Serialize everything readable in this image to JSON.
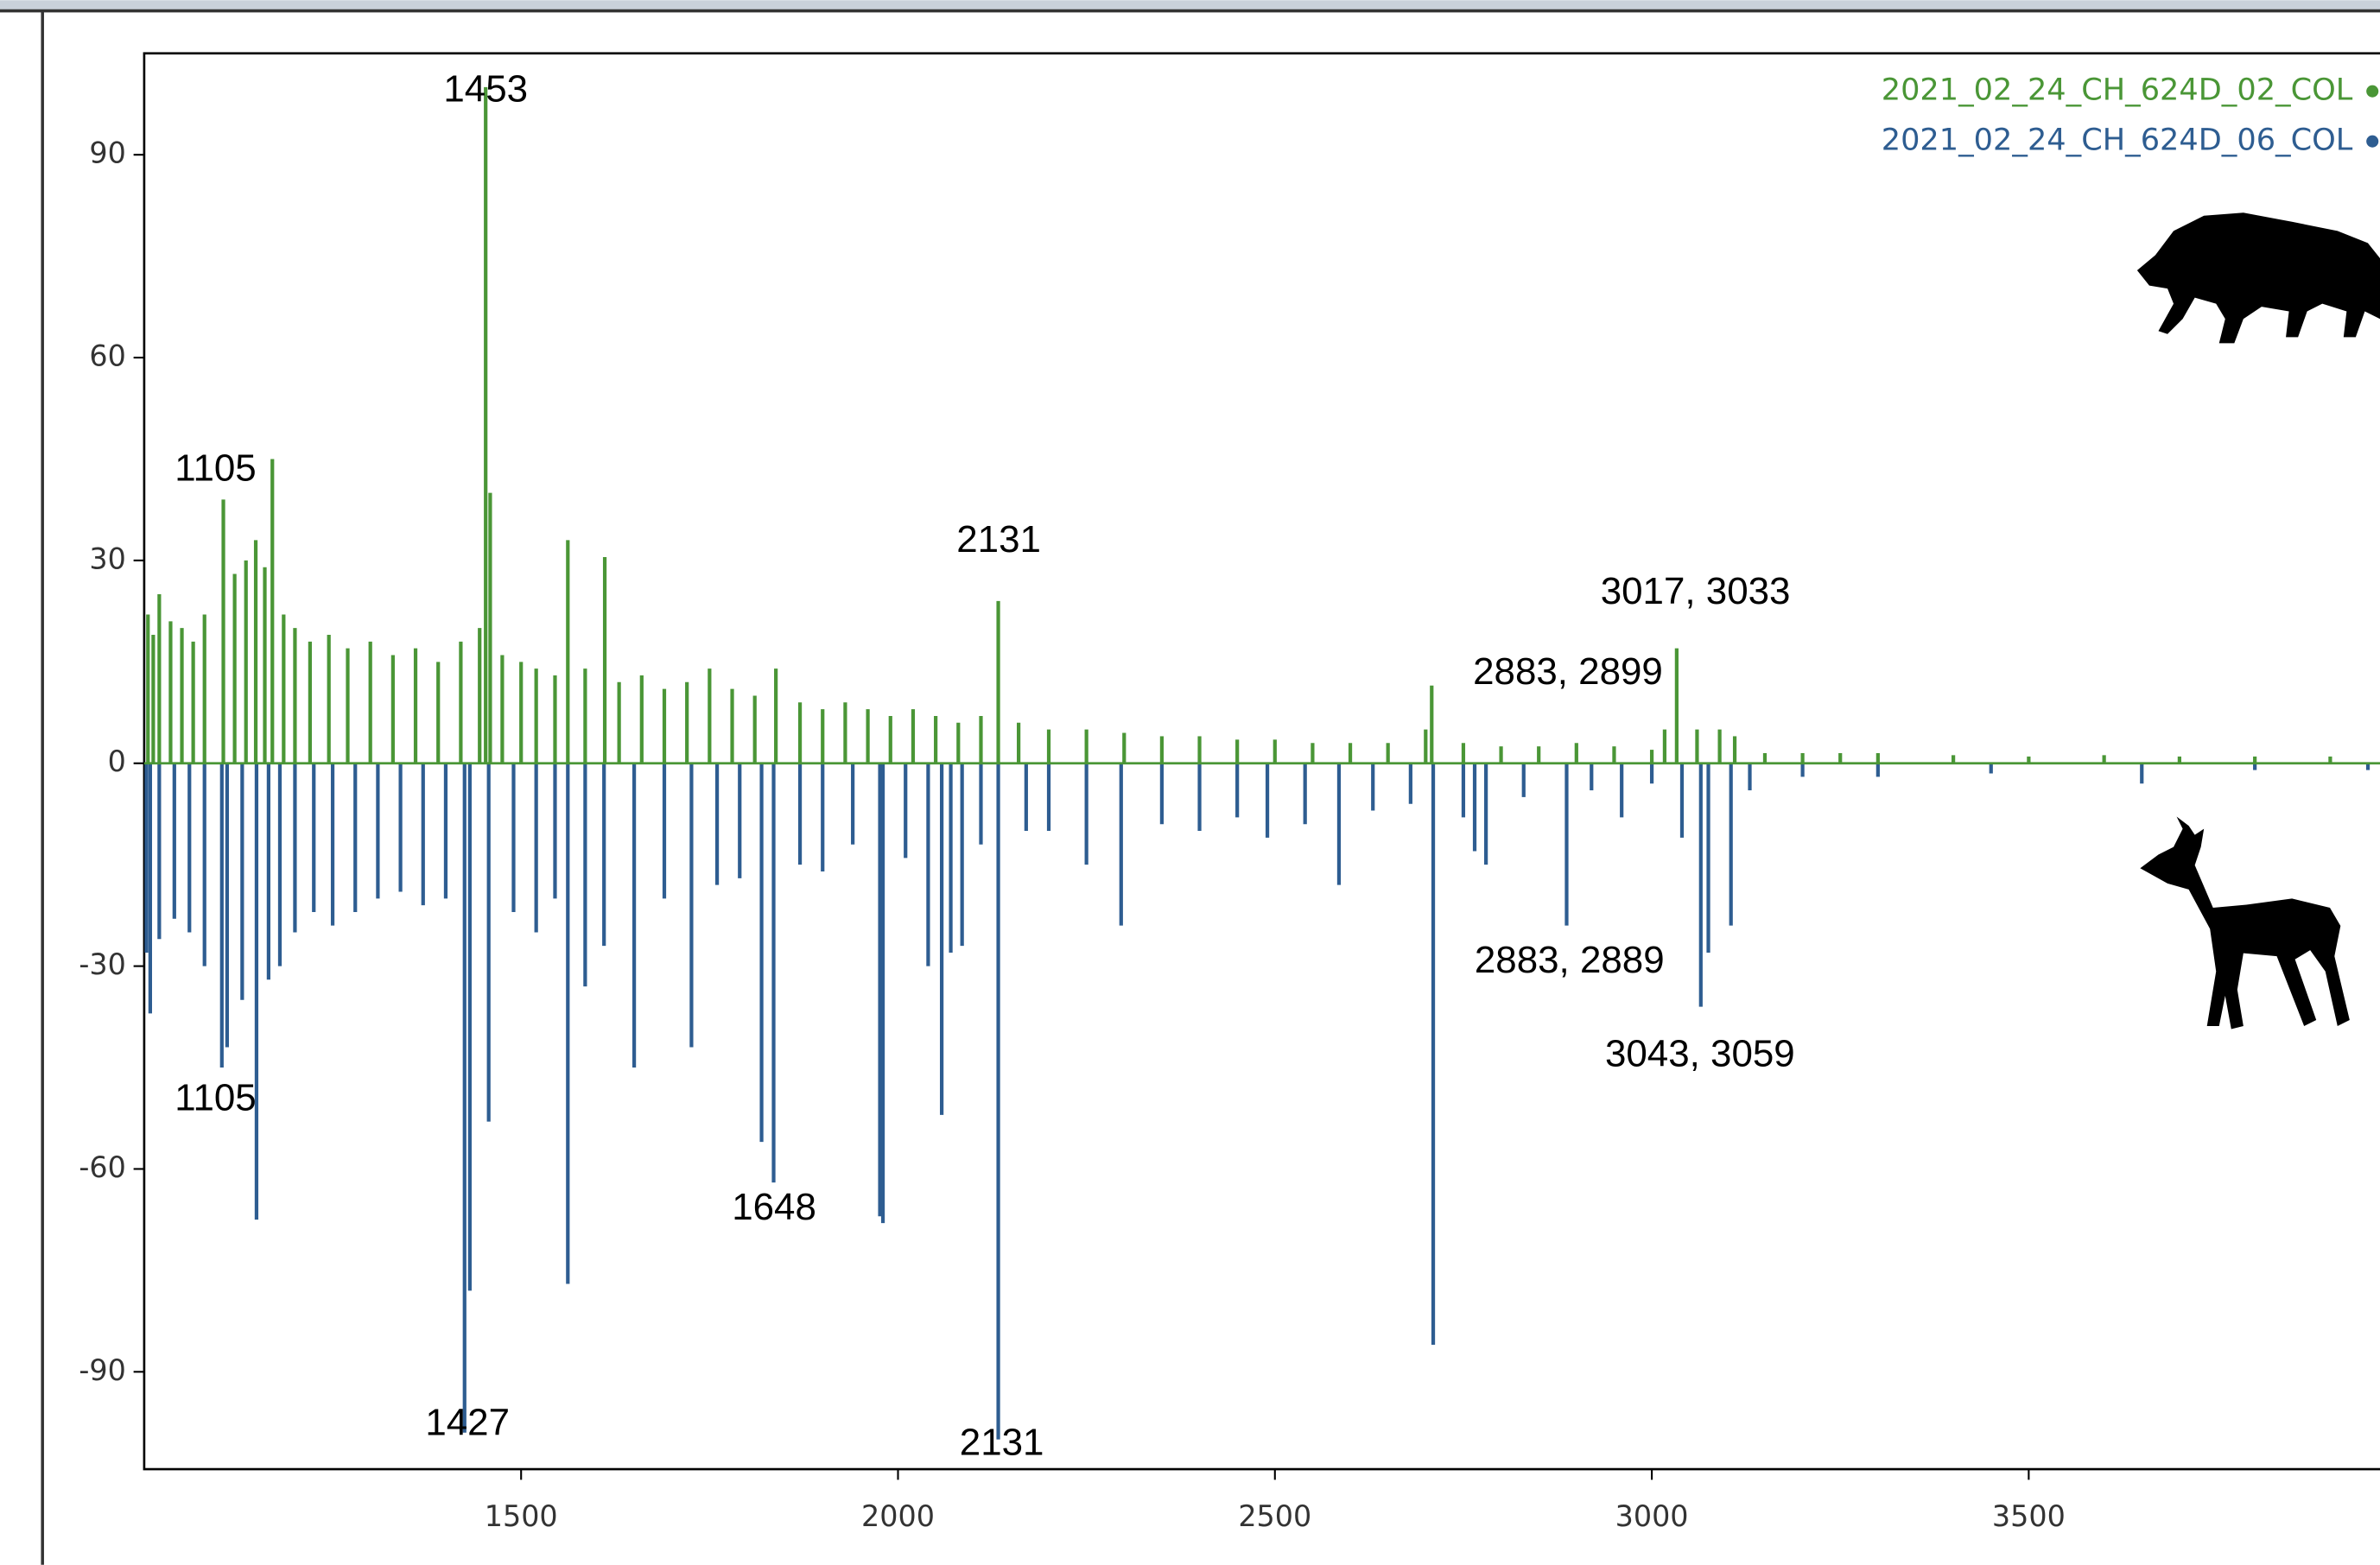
{
  "chart_data": {
    "type": "mirror-spectrum",
    "xlim": [
      1000,
      3966
    ],
    "ylim": [
      -104.4,
      105
    ],
    "xticks": [
      1500,
      2000,
      2500,
      3000,
      3500
    ],
    "yticks": [
      -90,
      -60,
      -30,
      0,
      30,
      60,
      90
    ],
    "series": [
      {
        "name": "2021_02_24_CH_624D_02_COL",
        "color": "#4a9636",
        "x": [
          1005,
          1012,
          1020,
          1035,
          1050,
          1065,
          1080,
          1105,
          1120,
          1135,
          1148,
          1160,
          1170,
          1185,
          1200,
          1220,
          1245,
          1270,
          1300,
          1330,
          1360,
          1390,
          1420,
          1445,
          1453,
          1459,
          1475,
          1500,
          1520,
          1545,
          1562,
          1585,
          1611,
          1630,
          1660,
          1690,
          1720,
          1750,
          1780,
          1810,
          1838,
          1870,
          1900,
          1930,
          1960,
          1990,
          2020,
          2050,
          2080,
          2110,
          2133,
          2160,
          2200,
          2250,
          2300,
          2350,
          2400,
          2450,
          2500,
          2550,
          2600,
          2650,
          2700,
          2708,
          2750,
          2800,
          2850,
          2900,
          2950,
          3000,
          3017,
          3033,
          3060,
          3090,
          3110,
          3150,
          3200,
          3250,
          3300,
          3400,
          3500,
          3600,
          3700,
          3800,
          3900
        ],
        "values": [
          22,
          19,
          25,
          21,
          20,
          18,
          22,
          39,
          28,
          30,
          33,
          29,
          45,
          22,
          20,
          18,
          19,
          17,
          18,
          16,
          17,
          15,
          18,
          20,
          100,
          40,
          16,
          15,
          14,
          13,
          33,
          14,
          30.5,
          12,
          13,
          11,
          12,
          14,
          11,
          10,
          14,
          9,
          8,
          9,
          8,
          7,
          8,
          7,
          6,
          7,
          24,
          6,
          5,
          5,
          4.5,
          4,
          4,
          3.5,
          3.5,
          3,
          3,
          3,
          5,
          11.5,
          3,
          2.5,
          2.5,
          3,
          2.5,
          2,
          5,
          17,
          5,
          5,
          4,
          1.5,
          1.5,
          1.5,
          1.5,
          1.2,
          1,
          1.2,
          1,
          1,
          1
        ]
      },
      {
        "name": "2021_02_24_CH_624D_06_COL",
        "color": "#2e5d91",
        "x": [
          1003,
          1008,
          1020,
          1040,
          1060,
          1080,
          1103,
          1110,
          1130,
          1149,
          1165,
          1180,
          1200,
          1225,
          1250,
          1280,
          1310,
          1340,
          1370,
          1400,
          1425,
          1432,
          1457,
          1490,
          1520,
          1545,
          1562,
          1585,
          1610,
          1650,
          1690,
          1726,
          1760,
          1790,
          1819,
          1835,
          1870,
          1900,
          1940,
          1976,
          1980,
          2010,
          2040,
          2058,
          2070,
          2085,
          2110,
          2133,
          2170,
          2200,
          2250,
          2296,
          2350,
          2400,
          2450,
          2490,
          2540,
          2585,
          2630,
          2680,
          2710,
          2750,
          2765,
          2780,
          2830,
          2887,
          2920,
          2960,
          3000,
          3040,
          3065,
          3075,
          3105,
          3130,
          3200,
          3300,
          3450,
          3650,
          3800,
          3950
        ],
        "values": [
          -28,
          -37,
          -26,
          -23,
          -25,
          -30,
          -45,
          -42,
          -35,
          -67.5,
          -32,
          -30,
          -25,
          -22,
          -24,
          -22,
          -20,
          -19,
          -21,
          -20,
          -99,
          -78,
          -53,
          -22,
          -25,
          -20,
          -77,
          -33,
          -27,
          -45,
          -20,
          -42,
          -18,
          -17,
          -56,
          -62,
          -15,
          -16,
          -12,
          -67,
          -68,
          -14,
          -30,
          -52,
          -28,
          -27,
          -12,
          -100,
          -10,
          -10,
          -15,
          -24,
          -9,
          -10,
          -8,
          -11,
          -9,
          -18,
          -7,
          -6,
          -86,
          -8,
          -13,
          -15,
          -5,
          -24,
          -4,
          -8,
          -3,
          -11,
          -36,
          -28,
          -24,
          -4,
          -2,
          -2,
          -1.5,
          -3,
          -1,
          -1
        ]
      }
    ],
    "annotations": [
      "1453",
      "1105",
      "2131",
      "3017, 3033",
      "2883, 2899",
      "1105",
      "1427",
      "2131",
      "1648",
      "2883, 2889",
      "3043, 3059"
    ]
  }
}
